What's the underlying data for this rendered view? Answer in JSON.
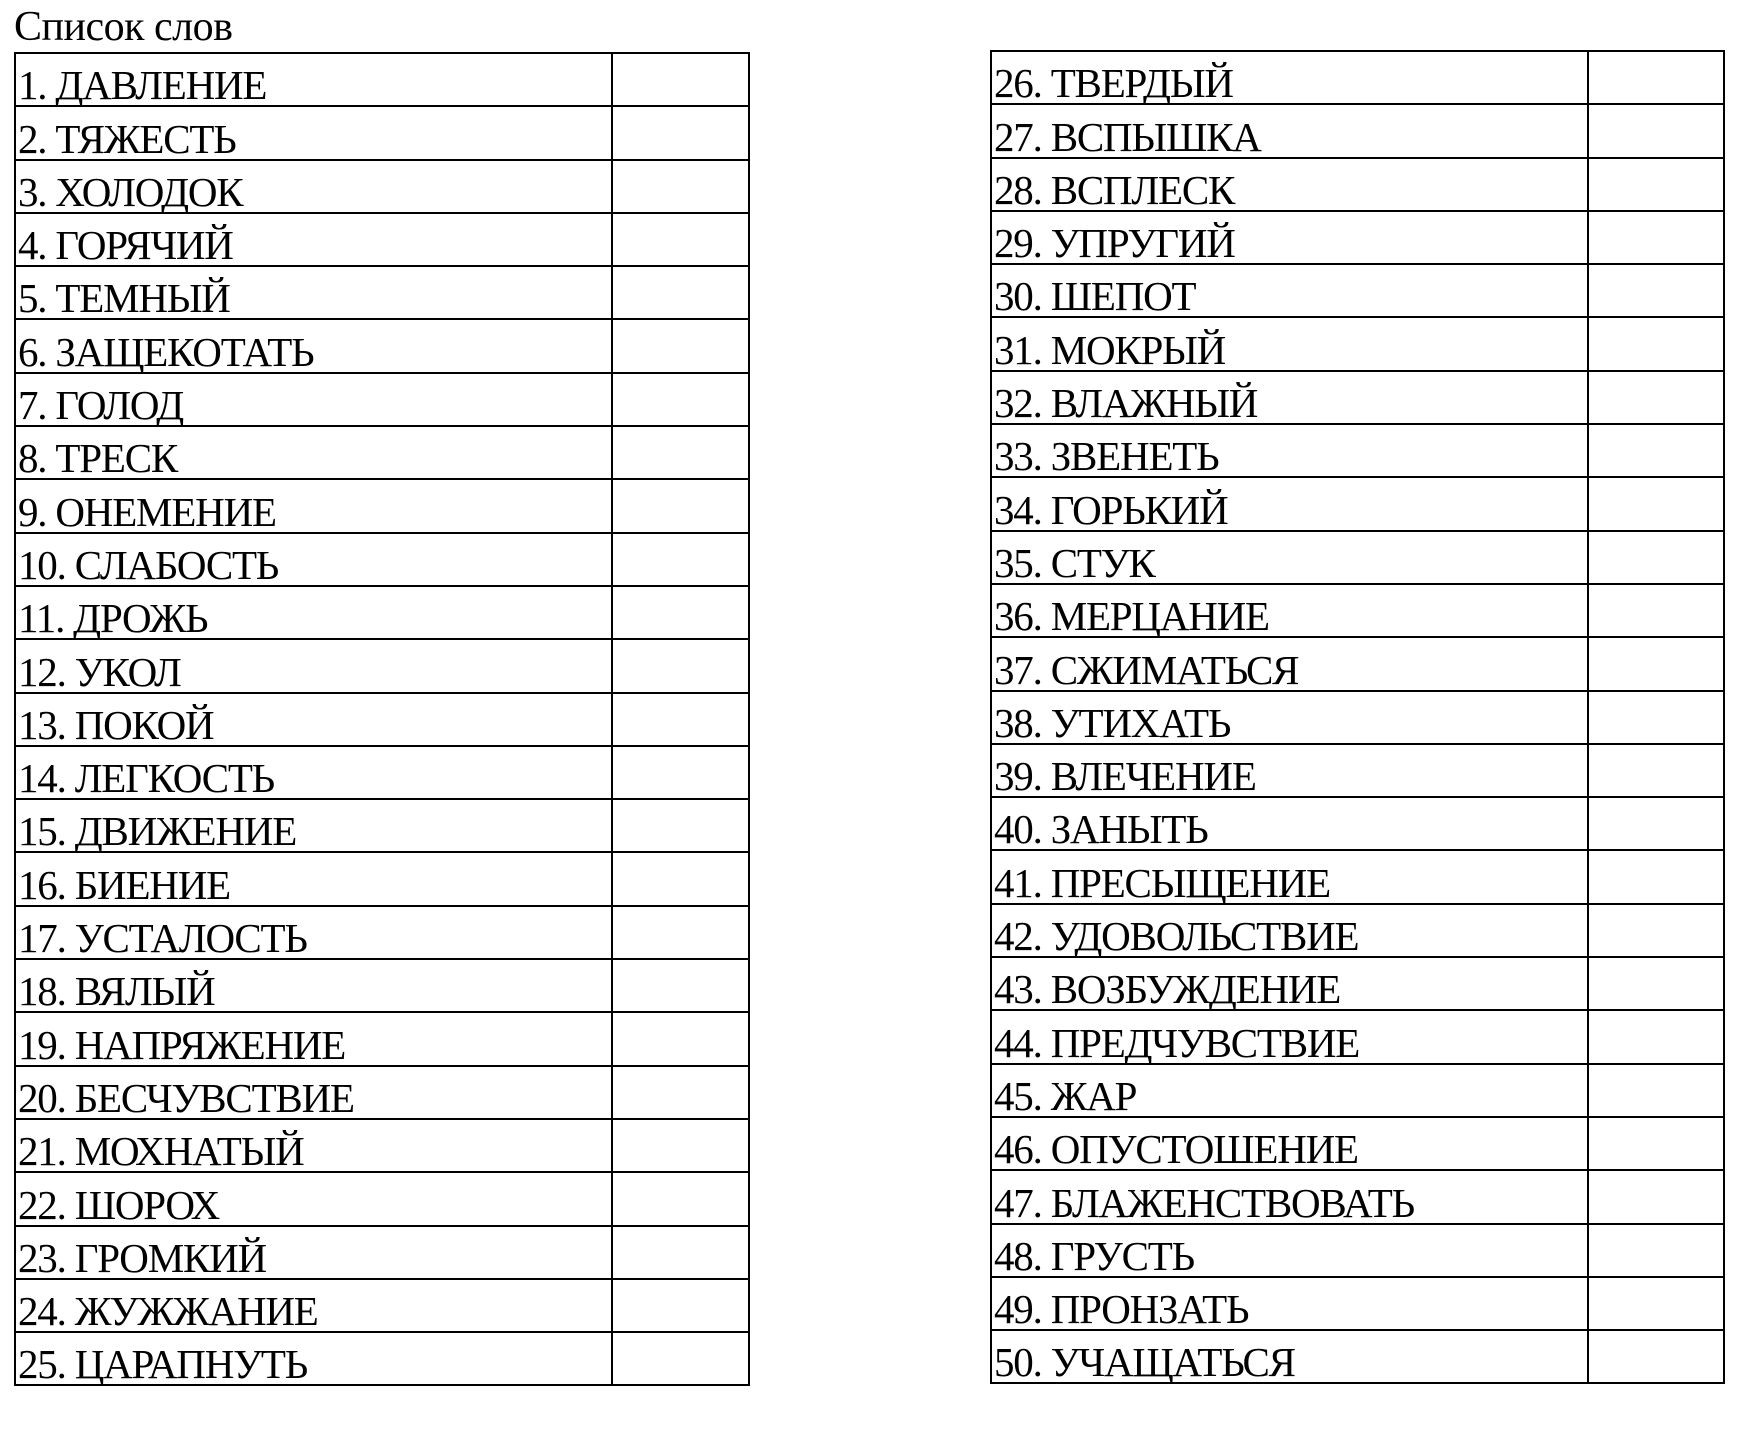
{
  "title": "Список слов",
  "left_words": [
    "1. ДАВЛЕНИЕ",
    "2. ТЯЖЕСТЬ",
    "3. ХОЛОДОК",
    "4. ГОРЯЧИЙ",
    "5. ТЕМНЫЙ",
    "6. ЗАЩЕКОТАТЬ",
    "7. ГОЛОД",
    "8. ТРЕСК",
    "9. ОНЕМЕНИЕ",
    "10. СЛАБОСТЬ",
    "11. ДРОЖЬ",
    "12. УКОЛ",
    "13. ПОКОЙ",
    "14. ЛЕГКОСТЬ",
    "15. ДВИЖЕНИЕ",
    "16. БИЕНИЕ",
    "17. УСТАЛОСТЬ",
    "18. ВЯЛЫЙ",
    "19. НАПРЯЖЕНИЕ",
    "20. БЕСЧУВСТВИЕ",
    "21. МОХНАТЫЙ",
    "22. ШОРОХ",
    "23. ГРОМКИЙ",
    "24. ЖУЖЖАНИЕ",
    "25. ЦАРАПНУТЬ"
  ],
  "right_words": [
    "26. ТВЕРДЫЙ",
    "27. ВСПЫШКА",
    "28. ВСПЛЕСК",
    "29. УПРУГИЙ",
    "30. ШЕПОТ",
    "31. МОКРЫЙ",
    "32. ВЛАЖНЫЙ",
    "33. ЗВЕНЕТЬ",
    "34. ГОРЬКИЙ",
    "35. СТУК",
    "36. МЕРЦАНИЕ",
    "37. СЖИМАТЬСЯ",
    "38. УТИХАТЬ",
    "39. ВЛЕЧЕНИЕ",
    "40. ЗАНЫТЬ",
    "41. ПРЕСЫЩЕНИЕ",
    "42. УДОВОЛЬСТВИЕ",
    "43. ВОЗБУЖДЕНИЕ",
    "44. ПРЕДЧУВСТВИЕ",
    "45. ЖАР",
    "46. ОПУСТОШЕНИЕ",
    "47. БЛАЖЕНСТВОВАТЬ",
    "48. ГРУСТЬ",
    "49. ПРОНЗАТЬ",
    "50. УЧАЩАТЬСЯ"
  ]
}
